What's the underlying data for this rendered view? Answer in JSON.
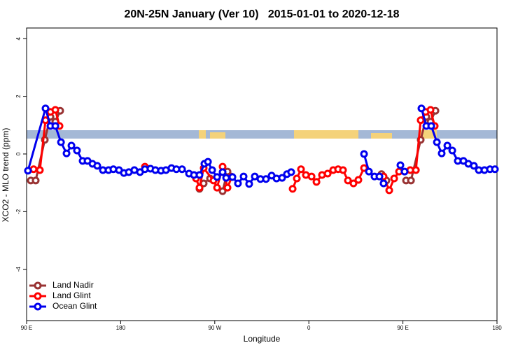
{
  "chart_data": {
    "type": "line",
    "title": "20N-25N January (Ver 10)   2015-01-01 to 2020-12-18",
    "x_label": "Longitude",
    "y_label": "XCO2 - MLO trend (ppm)",
    "xlim": [
      90,
      540
    ],
    "xticks": [
      {
        "value": 90,
        "label": "90 E"
      },
      180,
      {
        "value": 270,
        "label": "90 W"
      },
      {
        "value": 360,
        "label": "0"
      },
      {
        "value": 450,
        "label": "90 E"
      },
      {
        "value": 540,
        "label": "180"
      }
    ],
    "ylim": [
      -5.78,
      4.37
    ],
    "yticks": [
      -4,
      -2,
      0,
      2,
      4
    ],
    "legend": "bottom-left",
    "series": [
      {
        "name": "Land Nadir",
        "color": "#993333",
        "x": [
          94,
          98.7,
          107.4,
          112.8,
          117.5,
          122.1,
          null,
          255.4,
          259.4,
          265.5,
          277.5,
          282.2,
          285.6,
          null,
          429.5,
          434.2,
          null,
          453,
          457.7,
          467,
          472.4,
          476.4,
          481.1
        ],
        "values": [
          -0.92,
          -0.92,
          0.49,
          1.29,
          1.12,
          1.5,
          null,
          -1.21,
          -1.02,
          -0.85,
          -1.29,
          -0.61,
          -0.78,
          null,
          -0.7,
          -0.92,
          null,
          -0.92,
          -0.92,
          0.49,
          1.29,
          1.12,
          1.5
        ]
      },
      {
        "name": "Land Glint",
        "color": "#ff0000",
        "x": [
          96.7,
          102.7,
          108.1,
          112.8,
          117.5,
          121.5,
          null,
          203.2,
          null,
          252.1,
          255.4,
          259.4,
          268.8,
          272.2,
          277.5,
          282.2,
          286.2,
          null,
          344.5,
          348.5,
          352.5,
          357.2,
          362.6,
          367.3,
          372.6,
          378,
          383.3,
          388,
          392.7,
          397.4,
          402.7,
          407.4,
          412.8,
          null,
          431.5,
          436.9,
          441.6,
          446.3,
          457,
          462.4,
          467,
          471.7,
          476.4,
          480.4
        ],
        "values": [
          -0.53,
          -0.56,
          1.17,
          1.46,
          1.53,
          0.97,
          null,
          -0.44,
          null,
          -0.85,
          -1.17,
          -0.49,
          -0.92,
          -1.17,
          -0.44,
          -1.17,
          -0.8,
          null,
          -1.21,
          -0.85,
          -0.53,
          -0.73,
          -0.78,
          -0.97,
          -0.73,
          -0.68,
          -0.56,
          -0.53,
          -0.56,
          -0.92,
          -1.02,
          -0.9,
          -0.49,
          null,
          -0.78,
          -1.26,
          -0.85,
          -0.61,
          -0.56,
          -0.56,
          1.17,
          1.46,
          1.53,
          0.97
        ]
      },
      {
        "name": "Ocean Glint",
        "color": "#0000ee",
        "x": [
          91.3,
          108.1,
          112.8,
          117.5,
          122.9,
          128.2,
          132.9,
          138.2,
          143.6,
          148.3,
          153,
          157.6,
          163,
          168.4,
          173,
          178.4,
          183.1,
          187.8,
          193.1,
          198.5,
          203.2,
          208.5,
          213.2,
          218.6,
          223.3,
          228.6,
          233.3,
          238.7,
          245.4,
          250.1,
          255.4,
          260.1,
          263.5,
          267.5,
          272.2,
          277.5,
          280.9,
          286.9,
          292.2,
          297.6,
          302.9,
          308.3,
          313.7,
          319,
          324.4,
          329.1,
          334.4,
          339.1,
          343.1,
          null,
          412.8,
          417.5,
          422.8,
          427.5,
          431.5,
          null,
          447.6,
          451.6,
          null,
          467.7,
          472.4,
          477.1,
          482.5,
          487.1,
          492.5,
          497.2,
          502.5,
          507.9,
          512.6,
          517.9,
          522.6,
          528,
          533.3,
          538
        ],
        "values": [
          -0.58,
          1.58,
          0.97,
          0.97,
          0.41,
          0.02,
          0.29,
          0.12,
          -0.24,
          -0.24,
          -0.34,
          -0.41,
          -0.56,
          -0.56,
          -0.53,
          -0.56,
          -0.66,
          -0.63,
          -0.56,
          -0.63,
          -0.53,
          -0.51,
          -0.56,
          -0.58,
          -0.56,
          -0.49,
          -0.53,
          -0.53,
          -0.68,
          -0.73,
          -0.73,
          -0.34,
          -0.27,
          -0.56,
          -0.8,
          -0.63,
          -0.83,
          -0.8,
          -1.02,
          -0.78,
          -1.04,
          -0.78,
          -0.87,
          -0.87,
          -0.75,
          -0.85,
          -0.83,
          -0.7,
          -0.63,
          null,
          0.0,
          -0.61,
          -0.78,
          -0.78,
          -1.02,
          null,
          -0.39,
          -0.61,
          null,
          1.58,
          0.97,
          0.97,
          0.41,
          0.02,
          0.29,
          0.12,
          -0.24,
          -0.24,
          -0.34,
          -0.41,
          -0.56,
          -0.56,
          -0.53,
          -0.53
        ]
      }
    ]
  }
}
